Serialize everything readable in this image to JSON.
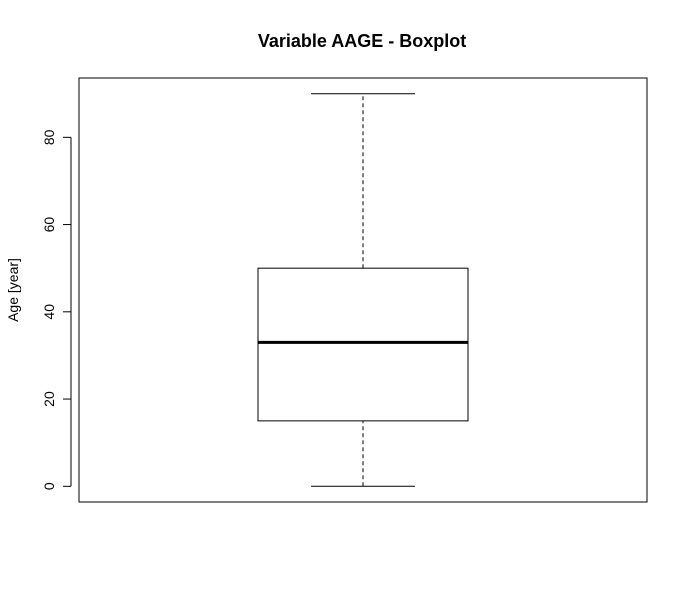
{
  "chart_data": {
    "type": "boxplot",
    "title": "Variable AAGE - Boxplot",
    "xlabel": "",
    "ylabel": "Age [year]",
    "ylim": [
      -3.6,
      93.6
    ],
    "y_ticks": [
      0,
      20,
      40,
      60,
      80
    ],
    "y_tick_labels": [
      "0",
      "20",
      "40",
      "60",
      "80"
    ],
    "grid": false,
    "legend": "none",
    "series": [
      {
        "whisker_low": 0,
        "q1": 15,
        "median": 33,
        "q3": 50,
        "whisker_high": 90
      }
    ],
    "colors": {
      "box_fill": "#ffffff",
      "stroke": "#000000"
    }
  }
}
